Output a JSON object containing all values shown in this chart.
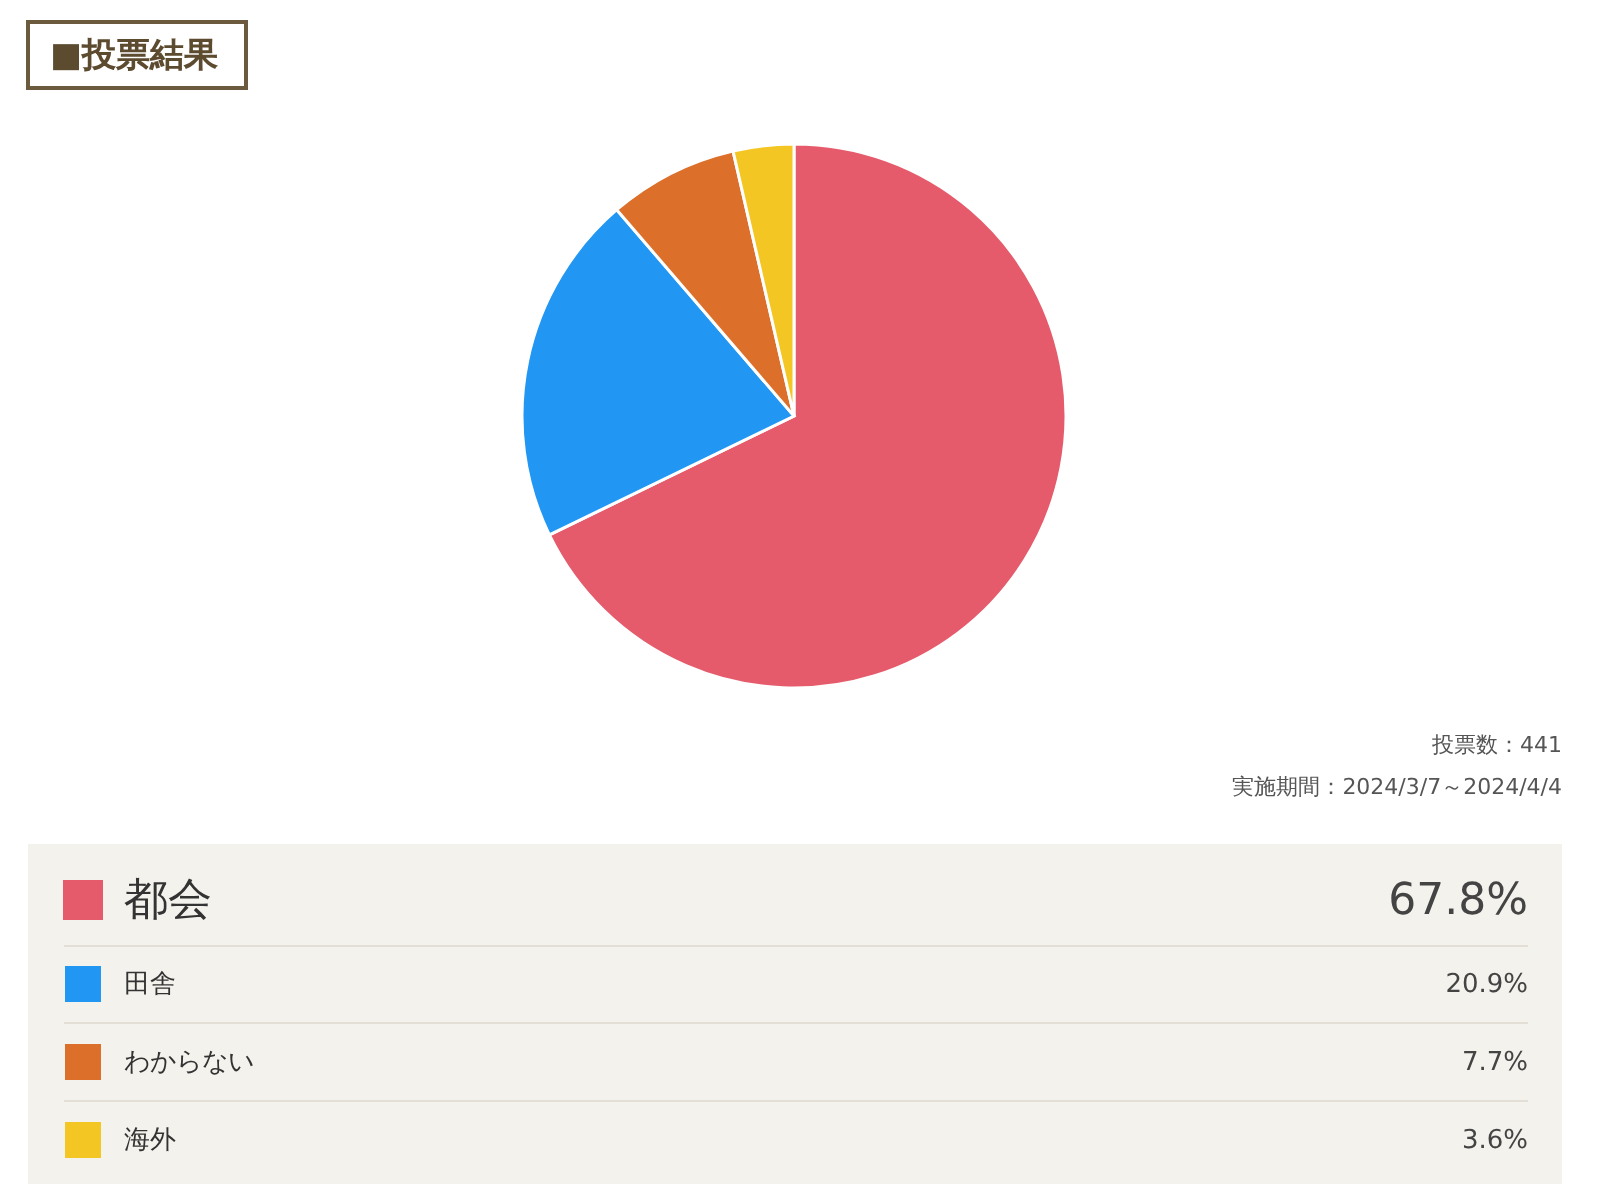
{
  "chart_data": {
    "type": "pie",
    "title": "■投票結果",
    "categories": [
      "都会",
      "田舎",
      "わからない",
      "海外"
    ],
    "values": [
      67.8,
      20.9,
      7.7,
      3.6
    ],
    "colors": [
      "#e55b6b",
      "#2196f3",
      "#dc6f29",
      "#f3c624"
    ],
    "value_labels": [
      "67.8%",
      "20.9%",
      "7.7%",
      "3.6%"
    ],
    "legend": "bottom",
    "annotations": [
      "投票数：441",
      "実施期間：2024/3/7～2024/4/4"
    ]
  }
}
